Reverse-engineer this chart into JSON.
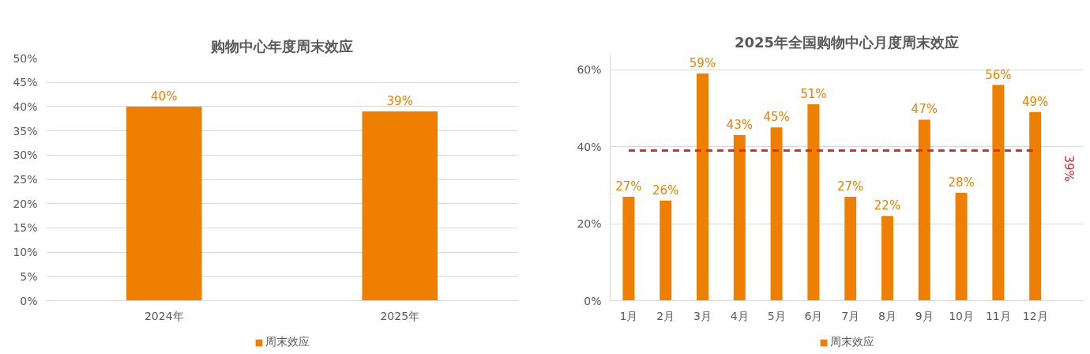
{
  "chart_data": [
    {
      "type": "bar",
      "title": "购物中心年度周末效应",
      "categories": [
        "2024年",
        "2025年"
      ],
      "series": [
        {
          "name": "周末效应",
          "color": "#ef7f00",
          "values": [
            40,
            39
          ],
          "value_labels": [
            "40%",
            "39%"
          ]
        }
      ],
      "ylim": [
        0,
        50
      ],
      "yticks": [
        {
          "value": 0,
          "label": "0%"
        },
        {
          "value": 5,
          "label": "5%"
        },
        {
          "value": 10,
          "label": "10%"
        },
        {
          "value": 15,
          "label": "15%"
        },
        {
          "value": 20,
          "label": "20%"
        },
        {
          "value": 25,
          "label": "25%"
        },
        {
          "value": 30,
          "label": "30%"
        },
        {
          "value": 35,
          "label": "35%"
        },
        {
          "value": 40,
          "label": "40%"
        },
        {
          "value": 45,
          "label": "45%"
        },
        {
          "value": 50,
          "label": "50%"
        }
      ],
      "grid": "y",
      "legend": "bottom"
    },
    {
      "type": "bar",
      "title": "2025年全国购物中心月度周末效应",
      "categories": [
        "1月",
        "2月",
        "3月",
        "4月",
        "5月",
        "6月",
        "7月",
        "8月",
        "9月",
        "10月",
        "11月",
        "12月"
      ],
      "series": [
        {
          "name": "周末效应",
          "color": "#ef7f00",
          "values": [
            27,
            26,
            59,
            43,
            45,
            51,
            27,
            22,
            47,
            28,
            56,
            49
          ],
          "value_labels": [
            "27%",
            "26%",
            "59%",
            "43%",
            "45%",
            "51%",
            "27%",
            "22%",
            "47%",
            "28%",
            "56%",
            "49%"
          ]
        }
      ],
      "ylim": [
        0,
        64
      ],
      "yticks": [
        {
          "value": 0,
          "label": "0%"
        },
        {
          "value": 20,
          "label": "20%"
        },
        {
          "value": 40,
          "label": "40%"
        },
        {
          "value": 60,
          "label": "60%"
        }
      ],
      "grid": "y",
      "legend": "bottom",
      "ref_lines": [
        {
          "axis": "y",
          "value": 39,
          "label": "39%",
          "color": "#e8262a",
          "line_style": "dashed"
        }
      ]
    }
  ]
}
